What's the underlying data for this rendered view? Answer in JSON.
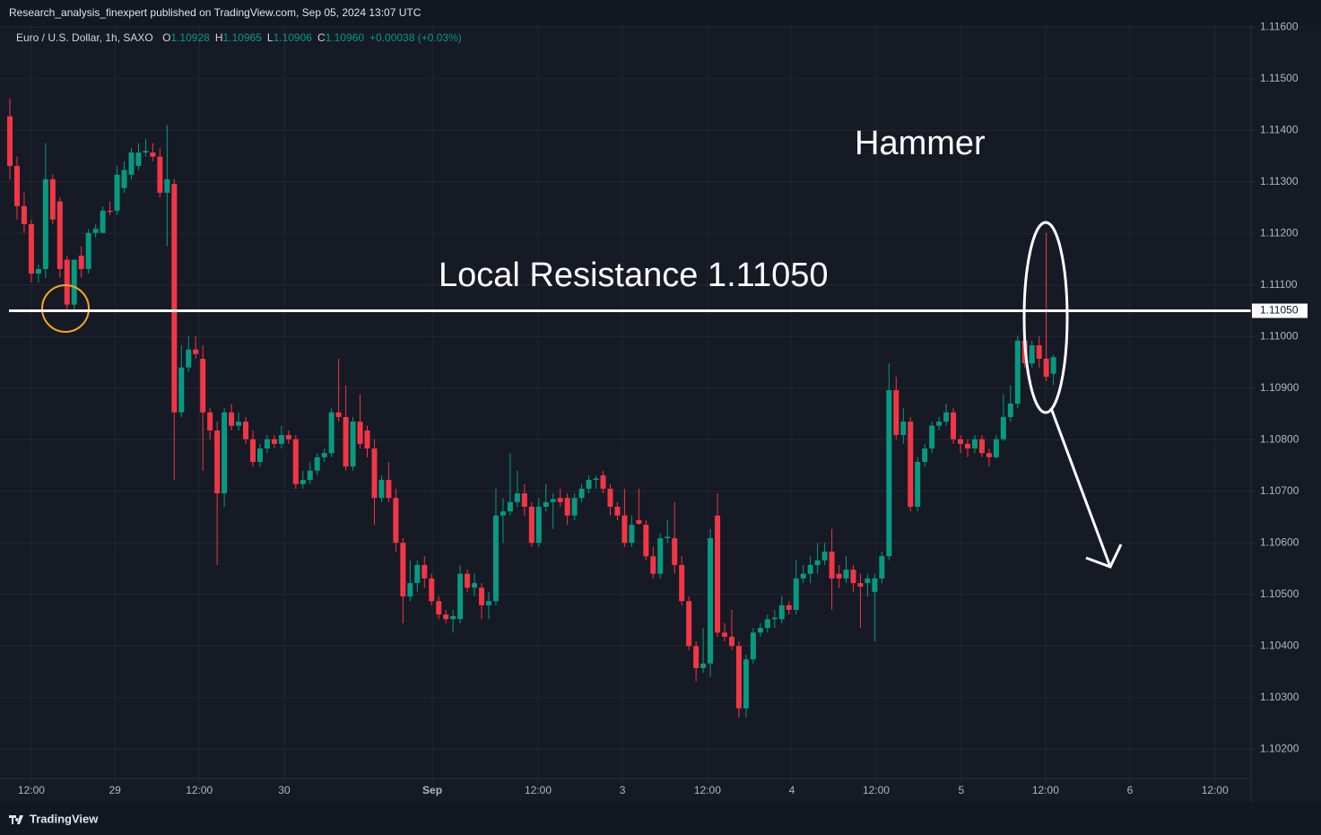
{
  "header": {
    "publisher": "Research_analysis_finexpert published on TradingView.com, Sep 05, 2024 13:07 UTC"
  },
  "footer": {
    "brand": "TradingView"
  },
  "chart_data": {
    "type": "candlestick",
    "symbol": "Euro / U.S. Dollar, 1h, SAXO",
    "ohlc_legend": [
      {
        "key": "O",
        "value": "1.10928"
      },
      {
        "key": "H",
        "value": "1.10965"
      },
      {
        "key": "L",
        "value": "1.10906"
      },
      {
        "key": "C",
        "value": "1.10960"
      }
    ],
    "change": "+0.00038 (+0.03%)",
    "up_color": "#089981",
    "down_color": "#f23645",
    "open": [
      1.11427,
      1.11331,
      1.11253,
      1.11218,
      1.11122,
      1.11131,
      1.11305,
      1.11262,
      1.11149,
      1.11062,
      1.11157,
      1.11131,
      1.11201,
      1.11201,
      1.11244,
      1.11244,
      1.11288,
      1.11314,
      1.11331,
      1.11357,
      1.11357,
      1.11349,
      1.11279,
      1.11296,
      1.10853,
      1.1094,
      1.10975,
      1.10957,
      1.10853,
      1.10818,
      1.10696,
      1.10853,
      1.10827,
      1.10835,
      1.10801,
      1.10757,
      1.10783,
      1.10801,
      1.10792,
      1.10809,
      1.10801,
      1.10714,
      1.10722,
      1.1074,
      1.10766,
      1.10774,
      1.10853,
      1.10844,
      1.10748,
      1.10835,
      1.10818,
      1.10783,
      1.10687,
      1.10722,
      1.10687,
      1.106,
      1.10496,
      1.10522,
      1.10557,
      1.10531,
      1.10487,
      1.10461,
      1.10452,
      1.10452,
      1.1054,
      1.10513,
      1.10513,
      1.10479,
      1.10487,
      1.10653,
      1.10661,
      1.10679,
      1.10696,
      1.1067,
      1.106,
      1.1067,
      1.10679,
      1.10687,
      1.10687,
      1.10653,
      1.10687,
      1.10705,
      1.10722,
      1.10731,
      1.10705,
      1.1067,
      1.10653,
      1.106,
      1.10644,
      1.10635,
      1.10574,
      1.1054,
      1.10609,
      1.10609,
      1.10557,
      1.10487,
      1.104,
      1.10357,
      1.10366,
      1.10653,
      1.10426,
      1.10418,
      1.104,
      1.10279,
      1.10374,
      1.10426,
      1.10435,
      1.10452,
      1.10452,
      1.10479,
      1.1047,
      1.10531,
      1.1054,
      1.10557,
      1.10566,
      1.10583,
      1.1054,
      1.10531,
      1.10548,
      1.10522,
      1.10522,
      1.10505,
      1.10531,
      1.10574,
      1.10896,
      1.10809,
      1.10835,
      1.1067,
      1.10757,
      1.10783,
      1.10827,
      1.10835,
      1.10853,
      1.10801,
      1.10792,
      1.10783,
      1.10801,
      1.10774,
      1.10766,
      1.10801,
      1.10844,
      1.1087,
      1.10992,
      1.10948,
      1.10983,
      1.10957,
      1.10928
    ],
    "high": [
      1.11462,
      1.11349,
      1.11279,
      1.11227,
      1.1114,
      1.11375,
      1.11314,
      1.1127,
      1.11157,
      1.11149,
      1.11175,
      1.11209,
      1.11218,
      1.11253,
      1.11262,
      1.11331,
      1.1134,
      1.11366,
      1.11375,
      1.11383,
      1.11375,
      1.11366,
      1.1141,
      1.11305,
      1.10983,
      1.11001,
      1.11001,
      1.10983,
      1.10861,
      1.10835,
      1.10861,
      1.1087,
      1.10853,
      1.10844,
      1.10818,
      1.10792,
      1.10809,
      1.10809,
      1.10827,
      1.10818,
      1.10809,
      1.1074,
      1.10757,
      1.10774,
      1.10783,
      1.10861,
      1.10957,
      1.10905,
      1.10844,
      1.10888,
      1.10827,
      1.10801,
      1.10731,
      1.10757,
      1.10705,
      1.10609,
      1.10566,
      1.10566,
      1.10574,
      1.1054,
      1.10496,
      1.1047,
      1.1047,
      1.10557,
      1.10548,
      1.1054,
      1.10522,
      1.10505,
      1.10705,
      1.10687,
      1.10774,
      1.1074,
      1.10714,
      1.10679,
      1.10687,
      1.10714,
      1.10696,
      1.10705,
      1.10696,
      1.10696,
      1.10714,
      1.10731,
      1.10731,
      1.1074,
      1.10714,
      1.10679,
      1.10705,
      1.10653,
      1.10705,
      1.10644,
      1.10592,
      1.10618,
      1.10644,
      1.10679,
      1.10574,
      1.10496,
      1.10409,
      1.10435,
      1.10627,
      1.10696,
      1.10444,
      1.1047,
      1.10409,
      1.10383,
      1.10435,
      1.10444,
      1.10461,
      1.1047,
      1.10496,
      1.10487,
      1.10566,
      1.10557,
      1.10574,
      1.106,
      1.106,
      1.10627,
      1.10557,
      1.10574,
      1.10557,
      1.1054,
      1.1054,
      1.1054,
      1.10583,
      1.10948,
      1.10922,
      1.10861,
      1.10844,
      1.10766,
      1.10792,
      1.10835,
      1.10844,
      1.1087,
      1.10861,
      1.10809,
      1.10801,
      1.10809,
      1.10809,
      1.10783,
      1.10809,
      1.10888,
      1.10905,
      1.11001,
      1.11009,
      1.10992,
      1.11001,
      1.11201,
      1.10965
    ],
    "low": [
      1.11305,
      1.11227,
      1.11201,
      1.11105,
      1.11105,
      1.11114,
      1.11218,
      1.11114,
      1.11053,
      1.11053,
      1.11114,
      1.11122,
      1.11192,
      1.11201,
      1.11236,
      1.11236,
      1.11279,
      1.11305,
      1.11323,
      1.11349,
      1.1134,
      1.1127,
      1.11175,
      1.10722,
      1.10844,
      1.10931,
      1.10957,
      1.1074,
      1.10801,
      1.10557,
      1.1067,
      1.10818,
      1.10818,
      1.10792,
      1.10748,
      1.10748,
      1.10774,
      1.10783,
      1.10783,
      1.10792,
      1.10705,
      1.10705,
      1.10714,
      1.10731,
      1.10757,
      1.10766,
      1.10835,
      1.1074,
      1.1074,
      1.10783,
      1.10766,
      1.10635,
      1.10679,
      1.10679,
      1.10583,
      1.10444,
      1.10487,
      1.10505,
      1.10513,
      1.10479,
      1.10452,
      1.10444,
      1.10426,
      1.10444,
      1.10505,
      1.10496,
      1.10452,
      1.10452,
      1.10479,
      1.106,
      1.10653,
      1.1067,
      1.10653,
      1.10592,
      1.10592,
      1.10661,
      1.10627,
      1.1067,
      1.10635,
      1.10644,
      1.10679,
      1.10696,
      1.10705,
      1.10696,
      1.10653,
      1.10644,
      1.10592,
      1.10592,
      1.10635,
      1.10566,
      1.10531,
      1.10531,
      1.106,
      1.1054,
      1.10479,
      1.10392,
      1.10331,
      1.10348,
      1.1034,
      1.10418,
      1.10409,
      1.10392,
      1.10261,
      1.10261,
      1.10366,
      1.10418,
      1.10426,
      1.10435,
      1.10444,
      1.10461,
      1.10461,
      1.10522,
      1.10522,
      1.1054,
      1.10557,
      1.1047,
      1.10513,
      1.10522,
      1.10505,
      1.10435,
      1.10496,
      1.10409,
      1.10522,
      1.10566,
      1.10801,
      1.10792,
      1.10661,
      1.10661,
      1.10748,
      1.10774,
      1.10818,
      1.10827,
      1.10792,
      1.10774,
      1.10766,
      1.10774,
      1.10766,
      1.10748,
      1.10763,
      1.10797,
      1.10835,
      1.10861,
      1.1094,
      1.1094,
      1.1094,
      1.10914,
      1.10906
    ],
    "close": [
      1.11331,
      1.11253,
      1.11218,
      1.11122,
      1.11131,
      1.11305,
      1.11227,
      1.11131,
      1.11062,
      1.11149,
      1.11131,
      1.11201,
      1.11209,
      1.11244,
      1.11242,
      1.11314,
      1.11323,
      1.11357,
      1.11357,
      1.1136,
      1.11349,
      1.11279,
      1.11305,
      1.10853,
      1.1094,
      1.10975,
      1.10966,
      1.10853,
      1.10818,
      1.10696,
      1.10853,
      1.10827,
      1.10835,
      1.10801,
      1.10757,
      1.10783,
      1.10801,
      1.10792,
      1.10809,
      1.10801,
      1.10714,
      1.10722,
      1.1074,
      1.10766,
      1.10774,
      1.10853,
      1.10844,
      1.10748,
      1.10835,
      1.10792,
      1.10783,
      1.10687,
      1.10722,
      1.10687,
      1.106,
      1.10496,
      1.10522,
      1.10557,
      1.10531,
      1.10487,
      1.10461,
      1.10452,
      1.10458,
      1.1054,
      1.10513,
      1.10522,
      1.10479,
      1.10487,
      1.10653,
      1.10661,
      1.10679,
      1.10696,
      1.1067,
      1.106,
      1.1067,
      1.10679,
      1.10685,
      1.10679,
      1.10653,
      1.10687,
      1.10705,
      1.10722,
      1.10725,
      1.10705,
      1.1067,
      1.10653,
      1.106,
      1.10635,
      1.10637,
      1.10574,
      1.1054,
      1.10609,
      1.10612,
      1.10557,
      1.10487,
      1.104,
      1.10357,
      1.10366,
      1.10609,
      1.10426,
      1.10418,
      1.104,
      1.10279,
      1.10374,
      1.10426,
      1.10435,
      1.10452,
      1.10455,
      1.10479,
      1.1047,
      1.10531,
      1.1054,
      1.10557,
      1.10566,
      1.10583,
      1.10531,
      1.10531,
      1.10548,
      1.10522,
      1.10515,
      1.10531,
      1.10531,
      1.10574,
      1.10896,
      1.10809,
      1.10835,
      1.1067,
      1.10757,
      1.10783,
      1.10827,
      1.10835,
      1.10853,
      1.10801,
      1.10792,
      1.10783,
      1.10801,
      1.10774,
      1.10766,
      1.10801,
      1.10844,
      1.1087,
      1.10992,
      1.10948,
      1.10983,
      1.10957,
      1.10922,
      1.1096
    ],
    "ylim": [
      1.10143,
      1.11604
    ],
    "yticks": [
      {
        "value": 1.116,
        "label": "1.11600"
      },
      {
        "value": 1.115,
        "label": "1.11500"
      },
      {
        "value": 1.114,
        "label": "1.11400"
      },
      {
        "value": 1.113,
        "label": "1.11300"
      },
      {
        "value": 1.112,
        "label": "1.11200"
      },
      {
        "value": 1.111,
        "label": "1.11100"
      },
      {
        "value": 1.11,
        "label": "1.11000"
      },
      {
        "value": 1.109,
        "label": "1.10900"
      },
      {
        "value": 1.108,
        "label": "1.10800"
      },
      {
        "value": 1.107,
        "label": "1.10700"
      },
      {
        "value": 1.106,
        "label": "1.10600"
      },
      {
        "value": 1.105,
        "label": "1.10500"
      },
      {
        "value": 1.104,
        "label": "1.10400"
      },
      {
        "value": 1.103,
        "label": "1.10300"
      },
      {
        "value": 1.102,
        "label": "1.10200"
      }
    ],
    "xlim": [
      -1.38,
      173.65
    ],
    "xticks": [
      {
        "value": 3.0,
        "label": "12:00"
      },
      {
        "value": 14.7,
        "label": "29"
      },
      {
        "value": 26.5,
        "label": "12:00"
      },
      {
        "value": 38.4,
        "label": "30"
      },
      {
        "value": 59.1,
        "label": "Sep"
      },
      {
        "value": 73.9,
        "label": "12:00"
      },
      {
        "value": 85.7,
        "label": "3"
      },
      {
        "value": 97.6,
        "label": "12:00"
      },
      {
        "value": 109.4,
        "label": "4"
      },
      {
        "value": 121.2,
        "label": "12:00"
      },
      {
        "value": 133.1,
        "label": "5"
      },
      {
        "value": 144.9,
        "label": "12:00"
      },
      {
        "value": 156.7,
        "label": "6"
      },
      {
        "value": 168.6,
        "label": "12:00"
      }
    ],
    "grid": true,
    "hlines": [
      {
        "value": 1.1105,
        "label": "1.11050",
        "color": "#ffffff"
      }
    ],
    "annotations": [
      {
        "text": "Hammer"
      },
      {
        "text": "Local Resistance 1.11050"
      }
    ]
  }
}
